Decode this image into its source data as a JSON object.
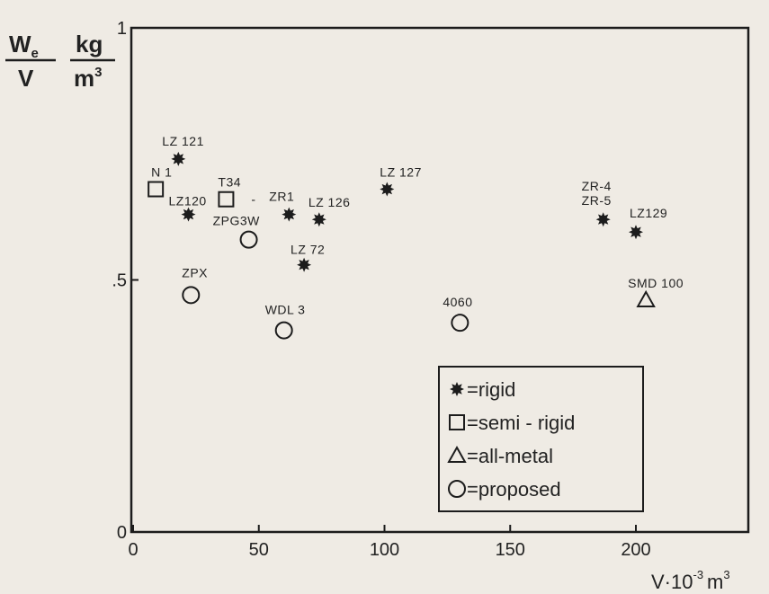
{
  "chart_data": {
    "type": "scatter",
    "xlabel": {
      "prefix": "V·10",
      "exp": "-3",
      "unit": "m",
      "unit_exp": "3"
    },
    "ylabel": {
      "num": "W",
      "num_sub": "e",
      "den": "V",
      "unit_num": "kg",
      "unit_den": "m",
      "unit_den_exp": "3"
    },
    "xlim": [
      0,
      240
    ],
    "ylim": [
      0,
      1
    ],
    "x_ticks": [
      0,
      50,
      100,
      150,
      200
    ],
    "x_tick_labels": [
      "0",
      "50",
      "100",
      "150",
      "200"
    ],
    "y_ticks": [
      0,
      0.5,
      1
    ],
    "y_tick_labels": [
      "0",
      ".5",
      "1"
    ],
    "grid": false,
    "legend_position": "bottom-right",
    "legend": [
      {
        "marker": "star",
        "label": "rigid"
      },
      {
        "marker": "square",
        "label": "semi - rigid"
      },
      {
        "marker": "triangle",
        "label": "all-metal"
      },
      {
        "marker": "circle",
        "label": "proposed"
      }
    ],
    "series": [
      {
        "name": "rigid",
        "marker": "star",
        "points": [
          {
            "label": "LZ 121",
            "x": 18,
            "y": 0.74
          },
          {
            "label": "LZ120",
            "x": 22,
            "y": 0.63
          },
          {
            "label": "ZR1",
            "x": 62,
            "y": 0.63
          },
          {
            "label": "LZ 126",
            "x": 74,
            "y": 0.62
          },
          {
            "label": "LZ 72",
            "x": 68,
            "y": 0.53
          },
          {
            "label": "LZ 127",
            "x": 101,
            "y": 0.68
          },
          {
            "label": "ZR-4\nZR-5",
            "x": 187,
            "y": 0.62
          },
          {
            "label": "LZ129",
            "x": 200,
            "y": 0.595
          }
        ]
      },
      {
        "name": "semi - rigid",
        "marker": "square",
        "points": [
          {
            "label": "N 1",
            "x": 9,
            "y": 0.68
          },
          {
            "label": "T34",
            "x": 37,
            "y": 0.66
          }
        ]
      },
      {
        "name": "all-metal",
        "marker": "triangle",
        "points": [
          {
            "label": "SMD 100",
            "x": 204,
            "y": 0.46
          }
        ]
      },
      {
        "name": "proposed",
        "marker": "circle",
        "points": [
          {
            "label": "ZPG3W",
            "x": 46,
            "y": 0.58
          },
          {
            "label": "ZPX",
            "x": 23,
            "y": 0.47
          },
          {
            "label": "WDL 3",
            "x": 60,
            "y": 0.4
          },
          {
            "label": "4060",
            "x": 130,
            "y": 0.415
          }
        ]
      }
    ],
    "annotations": [
      "-"
    ]
  }
}
